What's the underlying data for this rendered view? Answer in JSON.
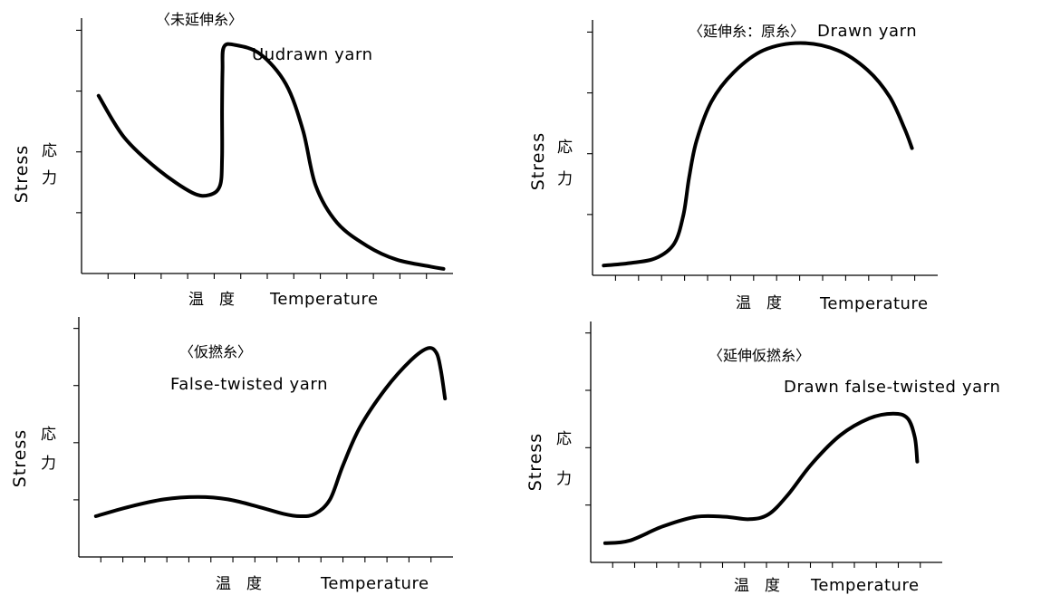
{
  "chart_data": [
    {
      "type": "line",
      "title_jp": "〈未延伸糸〉",
      "title_en": "Uudrawn yarn",
      "ylabel_en": "Stress",
      "ylabel_jp": [
        "応",
        "力"
      ],
      "xlabel_jp": "温　度",
      "xlabel_en": "Temperature",
      "grid": false,
      "x_ticks": 13,
      "y_ticks": 4,
      "curve_path": [
        [
          0.04,
          0.77
        ],
        [
          0.1,
          0.59
        ],
        [
          0.18,
          0.45
        ],
        [
          0.26,
          0.35
        ],
        [
          0.3,
          0.34
        ],
        [
          0.325,
          0.38
        ],
        [
          0.33,
          0.5
        ],
        [
          0.33,
          0.71
        ],
        [
          0.331,
          0.88
        ],
        [
          0.334,
          0.98
        ],
        [
          0.36,
          0.99
        ],
        [
          0.42,
          0.95
        ],
        [
          0.48,
          0.82
        ],
        [
          0.52,
          0.62
        ],
        [
          0.55,
          0.38
        ],
        [
          0.6,
          0.22
        ],
        [
          0.67,
          0.12
        ],
        [
          0.74,
          0.06
        ],
        [
          0.82,
          0.03
        ],
        [
          0.85,
          0.02
        ]
      ]
    },
    {
      "type": "line",
      "title_jp": "〈延伸糸：原糸〉",
      "title_en": "Drawn yarn",
      "ylabel_en": "Stress",
      "ylabel_jp": [
        "応",
        "力"
      ],
      "xlabel_jp": "温　度",
      "xlabel_en": "Temperature",
      "grid": false,
      "x_ticks": 14,
      "y_ticks": 4,
      "curve_path": [
        [
          0.03,
          0.04
        ],
        [
          0.1,
          0.05
        ],
        [
          0.17,
          0.07
        ],
        [
          0.22,
          0.13
        ],
        [
          0.245,
          0.25
        ],
        [
          0.26,
          0.4
        ],
        [
          0.28,
          0.55
        ],
        [
          0.32,
          0.71
        ],
        [
          0.38,
          0.83
        ],
        [
          0.46,
          0.92
        ],
        [
          0.56,
          0.95
        ],
        [
          0.66,
          0.92
        ],
        [
          0.74,
          0.84
        ],
        [
          0.8,
          0.73
        ],
        [
          0.84,
          0.6
        ],
        [
          0.86,
          0.52
        ]
      ]
    },
    {
      "type": "line",
      "title_jp": "〈仮撚糸〉",
      "title_en": "False-twisted yarn",
      "ylabel_en": "Stress",
      "ylabel_jp": [
        "応",
        "力"
      ],
      "xlabel_jp": "温　度",
      "xlabel_en": "Temperature",
      "grid": false,
      "x_ticks": 16,
      "y_ticks": 4,
      "curve_path": [
        [
          0.04,
          0.17
        ],
        [
          0.12,
          0.21
        ],
        [
          0.2,
          0.24
        ],
        [
          0.28,
          0.25
        ],
        [
          0.35,
          0.24
        ],
        [
          0.42,
          0.21
        ],
        [
          0.48,
          0.18
        ],
        [
          0.52,
          0.17
        ],
        [
          0.555,
          0.18
        ],
        [
          0.59,
          0.24
        ],
        [
          0.62,
          0.38
        ],
        [
          0.66,
          0.54
        ],
        [
          0.72,
          0.7
        ],
        [
          0.78,
          0.82
        ],
        [
          0.82,
          0.87
        ],
        [
          0.84,
          0.85
        ],
        [
          0.85,
          0.78
        ],
        [
          0.86,
          0.66
        ]
      ]
    },
    {
      "type": "line",
      "title_jp": "〈延伸仮撚糸〉",
      "title_en": "Drawn false-twisted yarn",
      "ylabel_en": "Stress",
      "ylabel_jp": [
        "応",
        "力"
      ],
      "xlabel_jp": "温　度",
      "xlabel_en": "Temperature",
      "grid": false,
      "x_ticks": 15,
      "y_ticks": 4,
      "curve_path": [
        [
          0.03,
          0.08
        ],
        [
          0.08,
          0.09
        ],
        [
          0.15,
          0.15
        ],
        [
          0.22,
          0.19
        ],
        [
          0.28,
          0.19
        ],
        [
          0.33,
          0.18
        ],
        [
          0.37,
          0.2
        ],
        [
          0.41,
          0.28
        ],
        [
          0.46,
          0.41
        ],
        [
          0.52,
          0.53
        ],
        [
          0.58,
          0.6
        ],
        [
          0.63,
          0.62
        ],
        [
          0.66,
          0.6
        ],
        [
          0.675,
          0.52
        ],
        [
          0.68,
          0.42
        ]
      ]
    }
  ]
}
